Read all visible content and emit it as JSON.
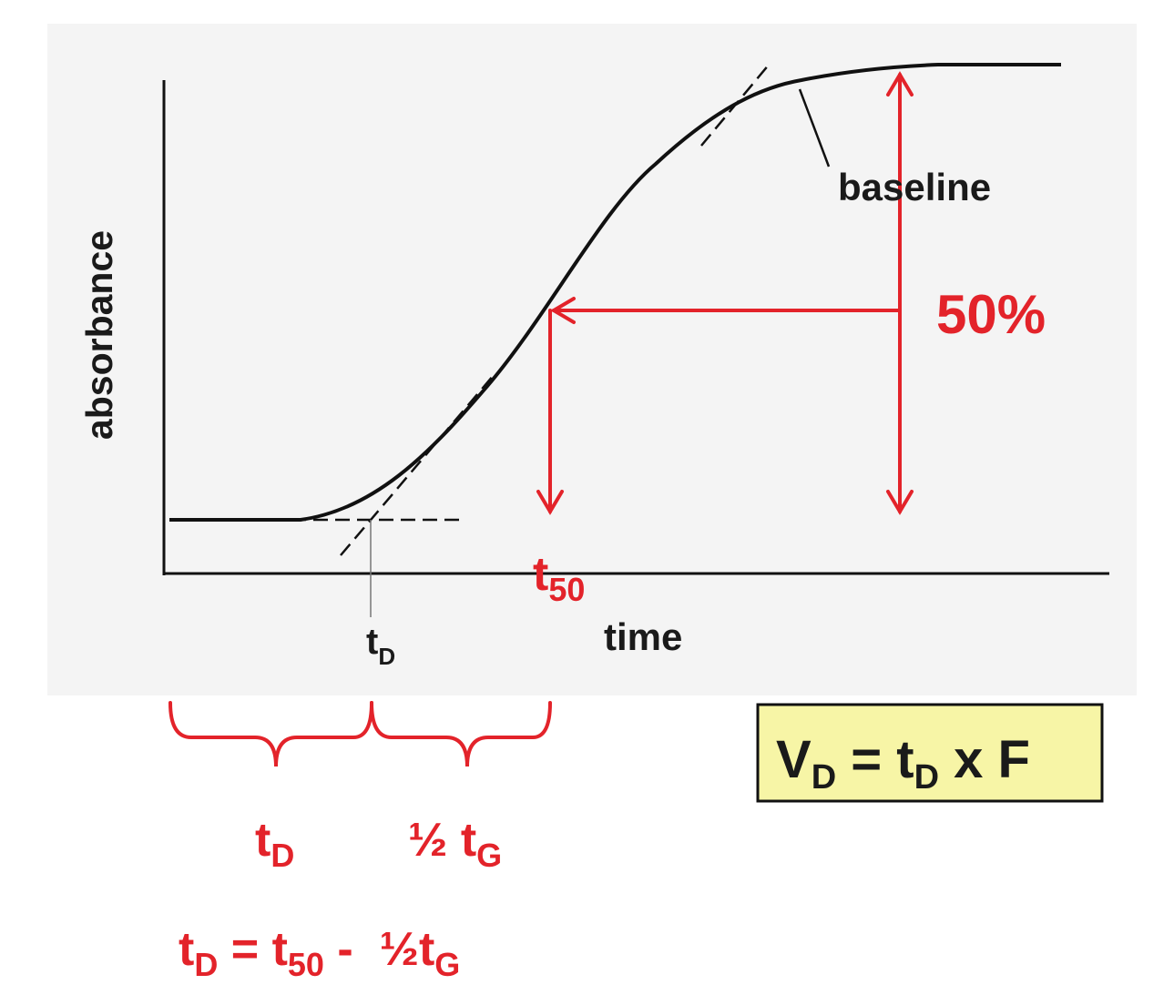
{
  "axes": {
    "ylabel": "absorbance",
    "xlabel": "time"
  },
  "annotations": {
    "baseline": "baseline",
    "percent": "50%",
    "t50": {
      "base": "t",
      "sub": "50"
    },
    "tD_axis": {
      "base": "t",
      "sub": "D"
    }
  },
  "brackets": {
    "left": {
      "base": "t",
      "sub": "D"
    },
    "right": {
      "prefix": "½ t",
      "sub": "G"
    }
  },
  "equation": {
    "lhs_base": "t",
    "lhs_sub": "D",
    "eq": " = t",
    "t50_sub": "50",
    "minus": " -  ½t",
    "g_sub": "G"
  },
  "formula_box": {
    "v": "V",
    "v_sub": "D",
    "mid": " = t",
    "t_sub": "D",
    "end": " x F"
  },
  "colors": {
    "accent_red": "#e3232a",
    "box_fill": "#f7f5a6",
    "plot_bg": "#f4f4f4"
  }
}
